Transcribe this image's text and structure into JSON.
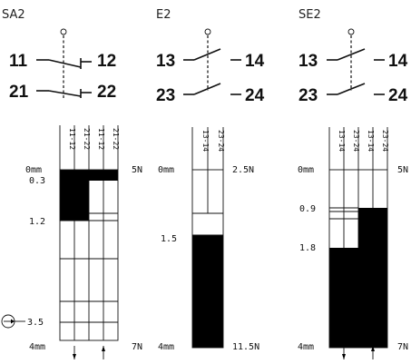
{
  "panels": [
    {
      "title": "SA2",
      "contacts": [
        {
          "left": "11",
          "right": "12"
        },
        {
          "left": "21",
          "right": "22"
        }
      ],
      "columns": [
        "11-12",
        "21-22",
        "11-12",
        "21-22"
      ],
      "travel_labels": [
        "0mm",
        "0.3",
        "1.2",
        "3.5",
        "4mm"
      ],
      "force_labels": [
        "5N",
        "7N"
      ]
    },
    {
      "title": "E2",
      "contacts": [
        {
          "left": "13",
          "right": "14"
        },
        {
          "left": "23",
          "right": "24"
        }
      ],
      "columns": [
        "13-14",
        "23-24"
      ],
      "travel_labels": [
        "0mm",
        "1.5",
        "4mm"
      ],
      "force_labels": [
        "2.5N",
        "11.5N"
      ]
    },
    {
      "title": "SE2",
      "contacts": [
        {
          "left": "13",
          "right": "14"
        },
        {
          "left": "23",
          "right": "24"
        }
      ],
      "columns": [
        "13-14",
        "23-24",
        "13-14",
        "23-24"
      ],
      "travel_labels": [
        "0mm",
        "0.9",
        "1.8",
        "4mm"
      ],
      "force_labels": [
        "5N",
        "7N"
      ]
    }
  ]
}
